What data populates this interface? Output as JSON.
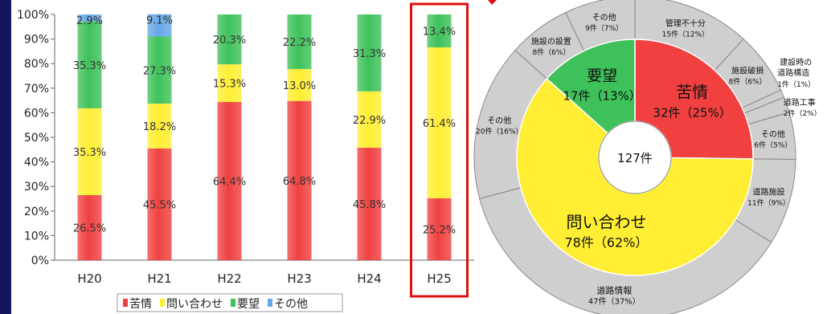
{
  "colors": {
    "complaint": "#f04040",
    "inquiry": "#ffee33",
    "request": "#3ec15a",
    "other": "#66a8e6",
    "highlight": "#dd1111",
    "navy": "#14165c",
    "ring": "#cfcfcf",
    "ring_stroke": "#8a8a8a"
  },
  "chart_data": [
    {
      "type": "bar",
      "stacked": true,
      "categories": [
        "H20",
        "H21",
        "H22",
        "H23",
        "H24",
        "H25"
      ],
      "ylim": [
        0,
        100
      ],
      "yticks": [
        "0%",
        "10%",
        "20%",
        "30%",
        "40%",
        "50%",
        "60%",
        "70%",
        "80%",
        "90%",
        "100%"
      ],
      "highlight_category": "H25",
      "legend_position": "bottom",
      "series": [
        {
          "name": "苦情",
          "values": [
            26.5,
            45.5,
            64.4,
            64.8,
            45.8,
            25.2
          ],
          "labels": [
            "26.5%",
            "45.5%",
            "64.4%",
            "64.8%",
            "45.8%",
            "25.2%"
          ]
        },
        {
          "name": "問い合わせ",
          "values": [
            35.3,
            18.2,
            15.3,
            13.0,
            22.9,
            61.4
          ],
          "labels": [
            "35.3%",
            "18.2%",
            "15.3%",
            "13.0%",
            "22.9%",
            "61.4%"
          ]
        },
        {
          "name": "要望",
          "values": [
            35.3,
            27.3,
            20.3,
            22.2,
            31.3,
            13.4
          ],
          "labels": [
            "35.3%",
            "27.3%",
            "20.3%",
            "22.2%",
            "31.3%",
            "13.4%"
          ]
        },
        {
          "name": "その他",
          "values": [
            2.9,
            9.1,
            0,
            0,
            0,
            0
          ],
          "labels": [
            "2.9%",
            "9.1%",
            "",
            "",
            "",
            ""
          ]
        }
      ]
    },
    {
      "type": "pie",
      "subtype": "sunburst",
      "total": 127,
      "center_label": "127件",
      "inner": [
        {
          "name": "苦情",
          "value": 32,
          "label": "32件（25%）"
        },
        {
          "name": "問い合わせ",
          "value": 78,
          "label": "78件（62%）"
        },
        {
          "name": "要望",
          "value": 17,
          "label": "17件（13%）"
        }
      ],
      "outer": [
        {
          "name": "管理不十分",
          "value": 15,
          "label": "15件（12%）"
        },
        {
          "name": "施設破損",
          "value": 8,
          "label": "8件（6%）"
        },
        {
          "name": "建設時の道路構造",
          "value": 1,
          "label": "1件（1%）"
        },
        {
          "name": "道路工事",
          "value": 2,
          "label": "2件（2%）"
        },
        {
          "name": "その他",
          "value": 6,
          "label": "6件（5%）"
        },
        {
          "name": "道路施設",
          "value": 11,
          "label": "11件（9%）"
        },
        {
          "name": "道路情報",
          "value": 47,
          "label": "47件（37%）"
        },
        {
          "name": "その他",
          "value": 20,
          "label": "20件（16%）"
        },
        {
          "name": "施設の設置",
          "value": 8,
          "label": "8件（6%）"
        },
        {
          "name": "その他",
          "value": 9,
          "label": "9件（7%）"
        }
      ]
    }
  ]
}
